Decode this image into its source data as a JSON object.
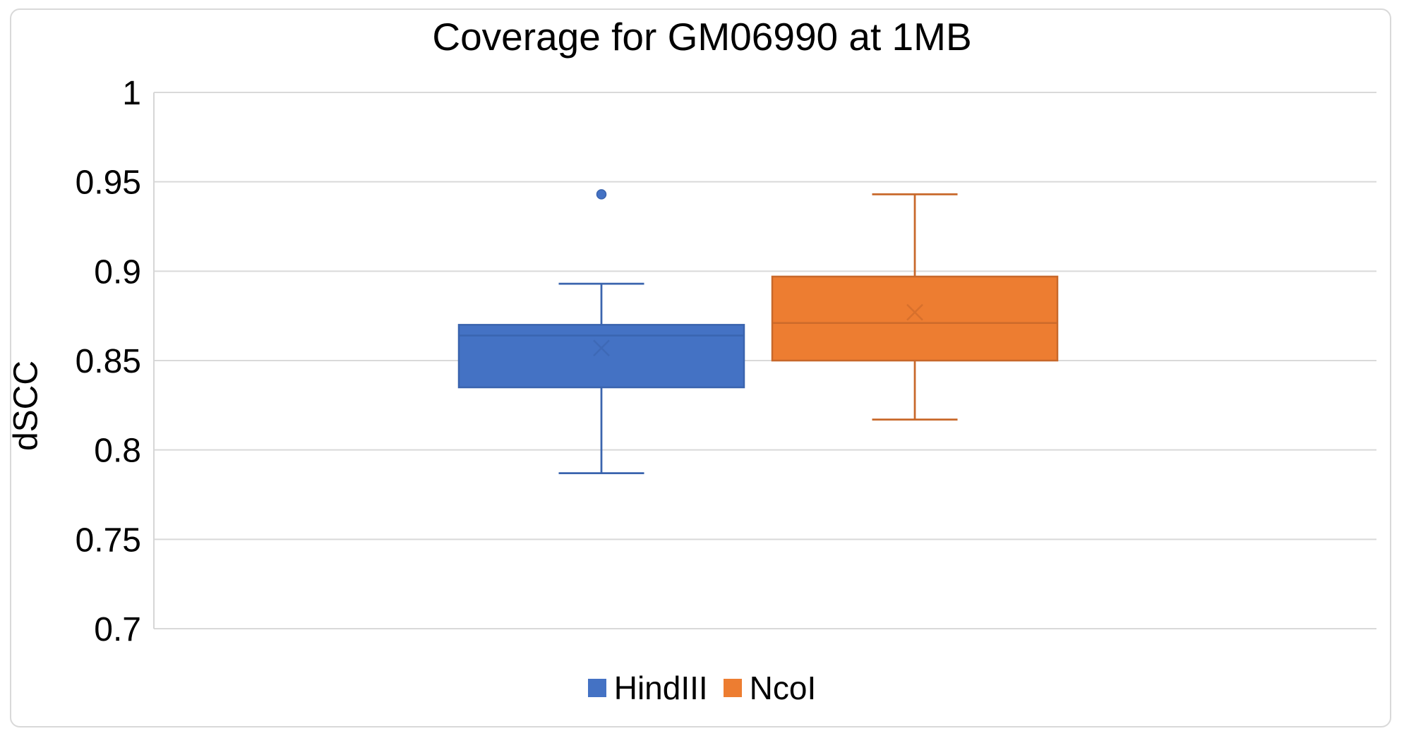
{
  "chart_data": {
    "type": "boxplot",
    "title": "Coverage for GM06990 at 1MB",
    "ylabel": "dSCC",
    "ylim": [
      0.7,
      1.0
    ],
    "yticks": [
      1,
      0.95,
      0.9,
      0.85,
      0.8,
      0.75,
      0.7
    ],
    "ytick_labels": [
      "1",
      "0.95",
      "0.9",
      "0.85",
      "0.8",
      "0.75",
      "0.7"
    ],
    "grid": true,
    "legend_position": "bottom",
    "colors": {
      "gridline": "#d9d9d9",
      "axis_line": "#d6d6d6",
      "text": "#000000",
      "background": "#ffffff",
      "frame_border": "#d9d9d9"
    },
    "series": [
      {
        "name": "HindIII",
        "fill": "#4472c4",
        "line": "#3a64ae",
        "whisker_low": 0.787,
        "q1": 0.835,
        "median": 0.864,
        "q3": 0.87,
        "whisker_high": 0.893,
        "mean": 0.857,
        "outliers": [
          0.943
        ]
      },
      {
        "name": "NcoI",
        "fill": "#ed7d31",
        "line": "#c8682a",
        "whisker_low": 0.817,
        "q1": 0.85,
        "median": 0.871,
        "q3": 0.897,
        "whisker_high": 0.943,
        "mean": 0.877,
        "outliers": []
      }
    ]
  }
}
